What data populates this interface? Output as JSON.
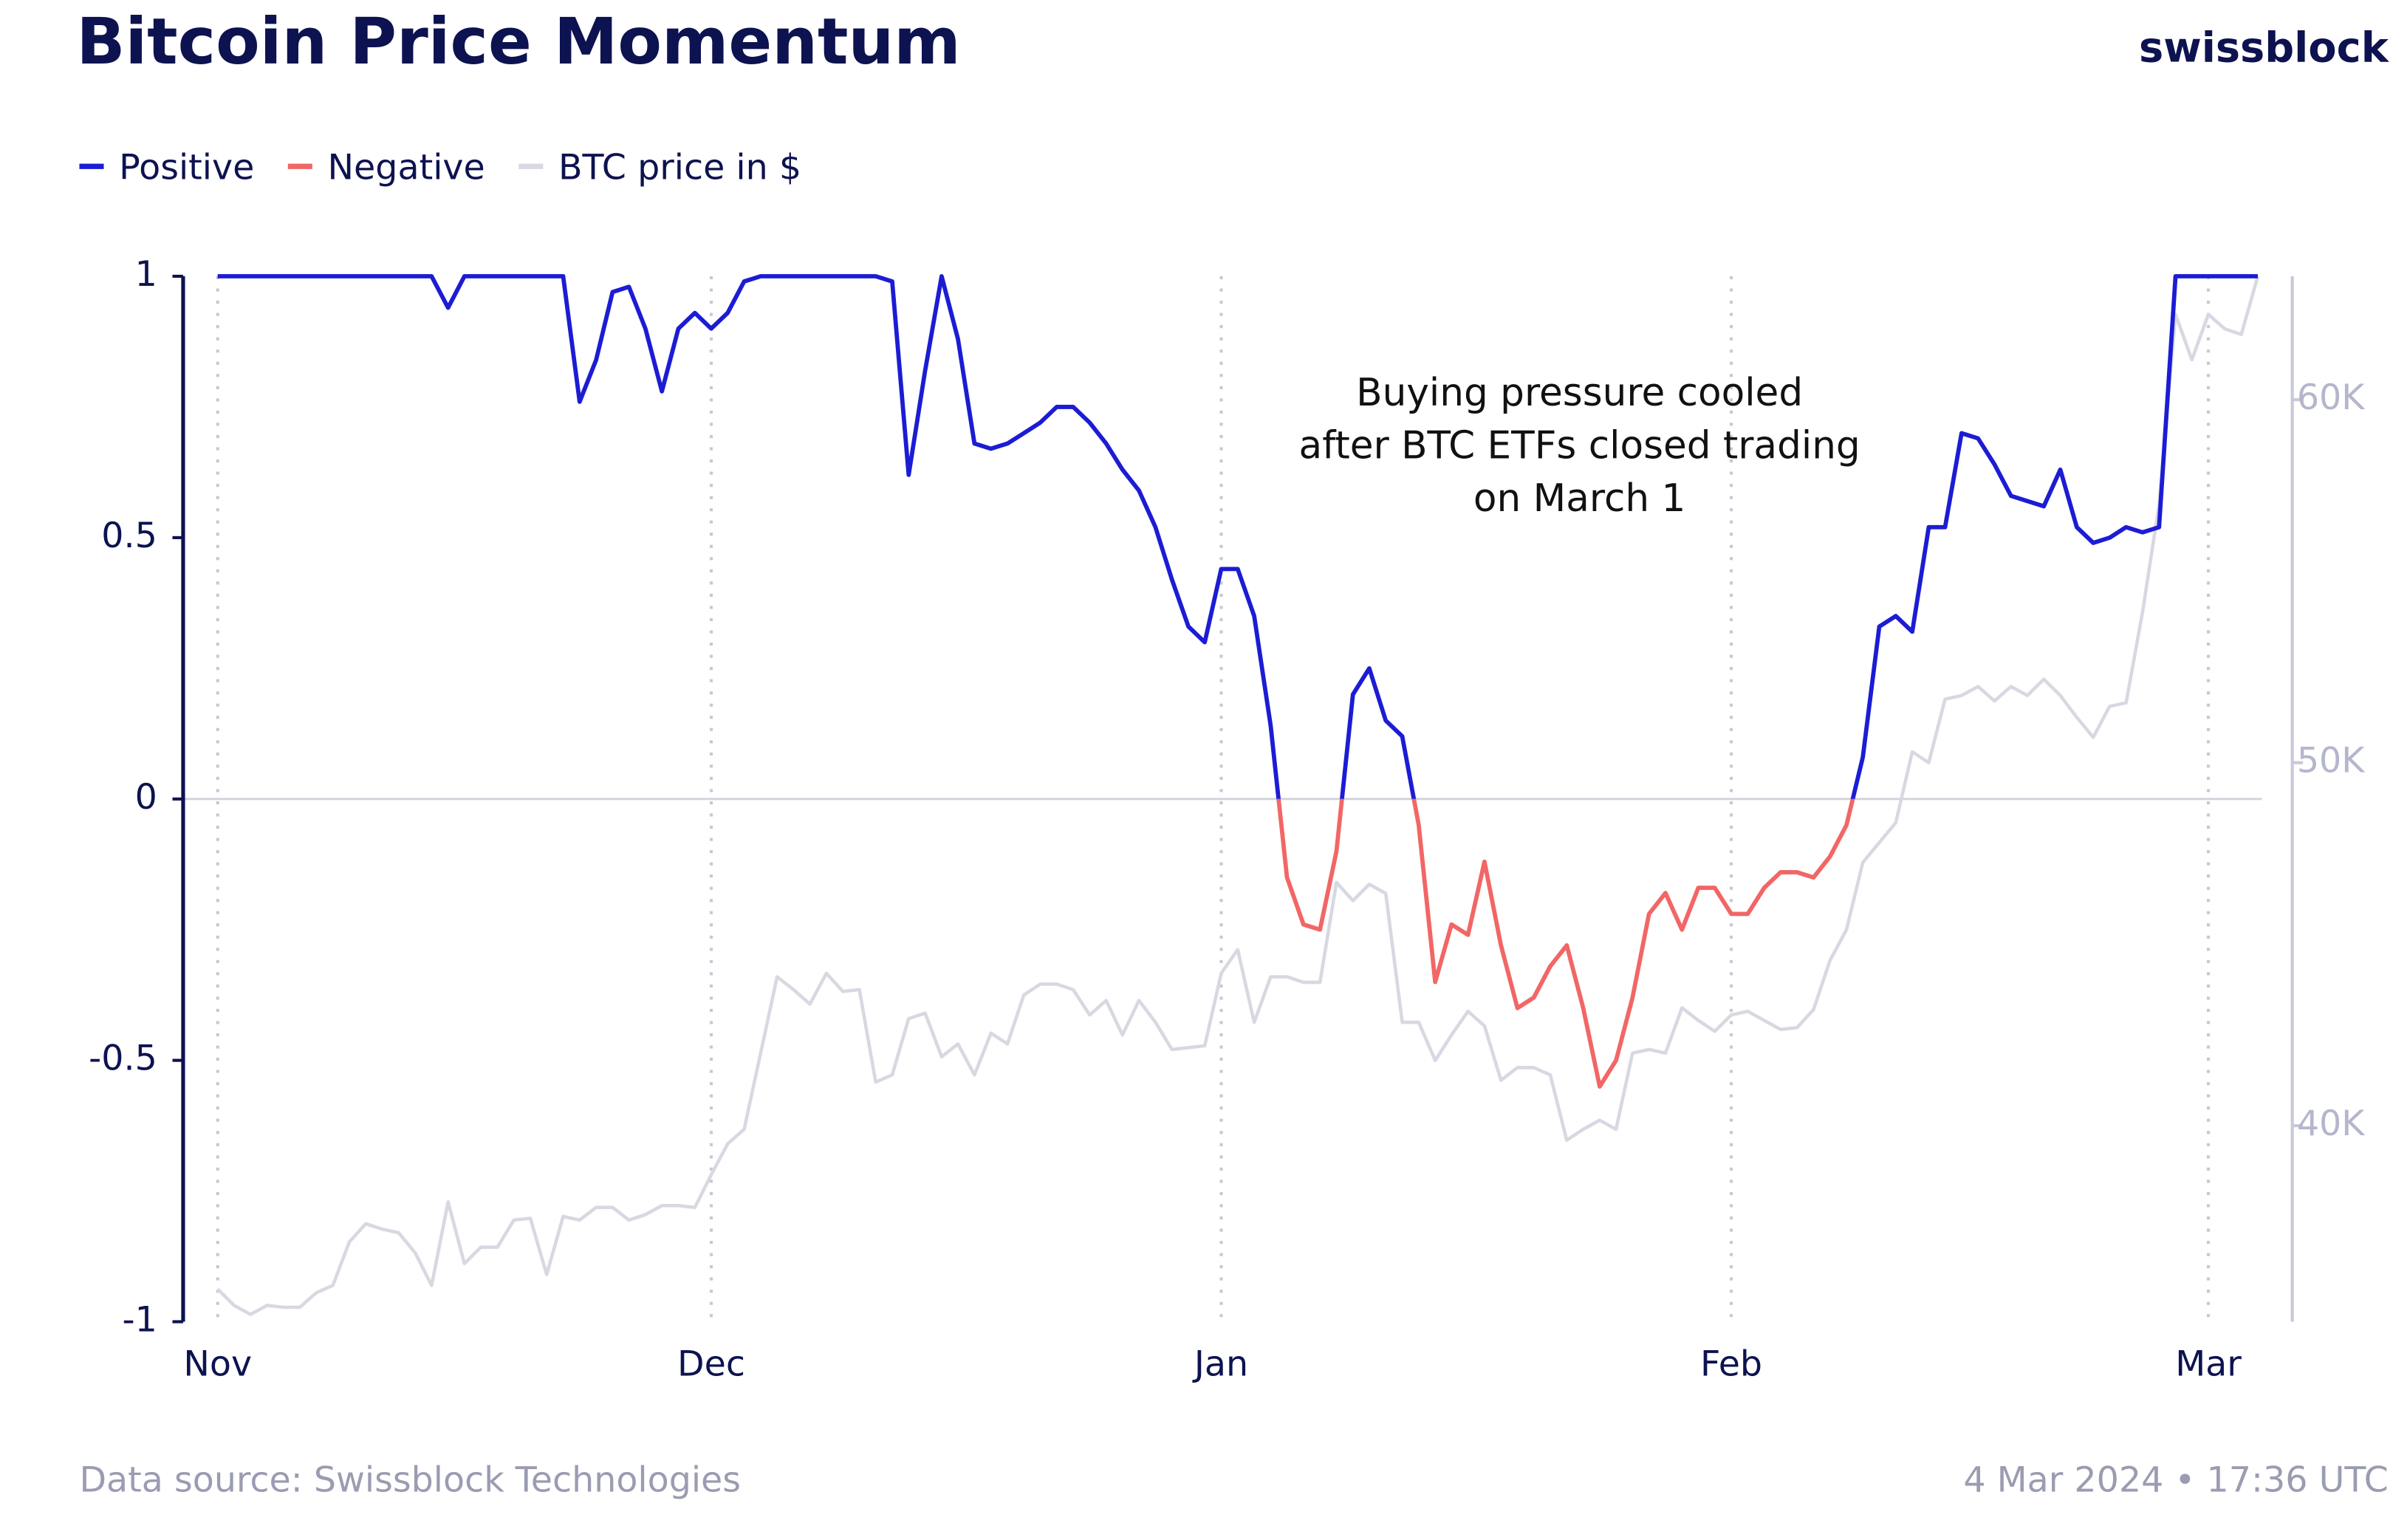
{
  "chart_data": {
    "type": "line",
    "title": "Bitcoin Price Momentum",
    "brand": "swissblock",
    "source": "Data source: Swissblock Technologies",
    "timestamp": "4 Mar 2024 • 17:36 UTC",
    "annotation": [
      "Buying pressure cooled",
      "after BTC ETFs closed trading",
      "on March 1"
    ],
    "x": [
      0,
      1,
      2,
      3,
      4,
      5,
      6,
      7,
      8,
      9,
      10,
      11,
      12,
      13,
      14,
      15,
      16,
      17,
      18,
      19,
      20,
      21,
      22,
      23,
      24,
      25,
      26,
      27,
      28,
      29,
      30,
      31,
      32,
      33,
      34,
      35,
      36,
      37,
      38,
      39,
      40,
      41,
      42,
      43,
      44,
      45,
      46,
      47,
      48,
      49,
      50,
      51,
      52,
      53,
      54,
      55,
      56,
      57,
      58,
      59,
      60,
      61,
      62,
      63,
      64,
      65,
      66,
      67,
      68,
      69,
      70,
      71,
      72,
      73,
      74,
      75,
      76,
      77,
      78,
      79,
      80,
      81,
      82,
      83,
      84,
      85,
      86,
      87,
      88,
      89,
      90,
      91,
      92,
      93,
      94,
      95,
      96,
      97,
      98,
      99,
      100,
      101,
      102,
      103,
      104,
      105,
      106,
      107,
      108,
      109,
      110,
      111,
      112,
      113,
      114,
      115,
      116,
      117,
      118,
      119,
      120,
      121,
      122,
      123,
      124
    ],
    "xlim": [
      -2.1,
      126.1
    ],
    "xticks": [
      {
        "value": 0,
        "label": "Nov"
      },
      {
        "value": 30,
        "label": "Dec"
      },
      {
        "value": 61,
        "label": "Jan"
      },
      {
        "value": 92,
        "label": "Feb"
      },
      {
        "value": 121,
        "label": "Mar"
      }
    ],
    "ylim": [
      -1,
      1
    ],
    "yticks": [
      1,
      0.5,
      0,
      -0.5,
      -1
    ],
    "y2lim": [
      34600,
      63400
    ],
    "y2ticks": [
      {
        "value": 60000,
        "label": "60K"
      },
      {
        "value": 50000,
        "label": "50K"
      },
      {
        "value": 40000,
        "label": "40K"
      }
    ],
    "series": [
      {
        "names": [
          "Positive",
          "Negative"
        ],
        "colors": [
          "#1c1cd4",
          "#f26666"
        ],
        "axis": "y",
        "values": [
          1,
          1,
          1,
          1,
          1,
          1,
          1,
          1,
          1,
          1,
          1,
          1,
          1,
          1,
          0.94,
          1,
          1,
          1,
          1,
          1,
          1,
          1,
          0.76,
          0.84,
          0.97,
          0.98,
          0.9,
          0.78,
          0.9,
          0.93,
          0.9,
          0.93,
          0.99,
          1,
          1,
          1,
          1,
          1,
          1,
          1,
          1,
          0.99,
          0.62,
          0.82,
          1,
          0.88,
          0.68,
          0.67,
          0.68,
          0.7,
          0.72,
          0.75,
          0.75,
          0.72,
          0.68,
          0.63,
          0.59,
          0.52,
          0.42,
          0.33,
          0.3,
          0.44,
          0.44,
          0.35,
          0.14,
          -0.15,
          -0.24,
          -0.25,
          -0.1,
          0.2,
          0.25,
          0.15,
          0.12,
          -0.05,
          -0.35,
          -0.24,
          -0.26,
          -0.12,
          -0.28,
          -0.4,
          -0.38,
          -0.32,
          -0.28,
          -0.4,
          -0.55,
          -0.5,
          -0.38,
          -0.22,
          -0.18,
          -0.25,
          -0.17,
          -0.17,
          -0.22,
          -0.22,
          -0.17,
          -0.14,
          -0.14,
          -0.15,
          -0.11,
          -0.05,
          0.08,
          0.33,
          0.35,
          0.32,
          0.52,
          0.52,
          0.7,
          0.69,
          0.64,
          0.58,
          0.57,
          0.56,
          0.63,
          0.52,
          0.49,
          0.5,
          0.52,
          0.51,
          0.52,
          1,
          1,
          1,
          1,
          1,
          1
        ]
      },
      {
        "name": "BTC price in $",
        "color": "#d8d8e2",
        "axis": "y2",
        "values": [
          35500,
          35050,
          34800,
          35050,
          35000,
          35000,
          35400,
          35600,
          36800,
          37300,
          37150,
          37050,
          36500,
          35600,
          37900,
          36200,
          36650,
          36650,
          37400,
          37450,
          35900,
          37500,
          37400,
          37750,
          37750,
          37400,
          37550,
          37800,
          37800,
          37750,
          38650,
          39500,
          39900,
          42000,
          44100,
          43750,
          43350,
          44200,
          43700,
          43750,
          41200,
          41400,
          42950,
          43100,
          41900,
          42250,
          41400,
          42550,
          42250,
          43600,
          43900,
          43900,
          43750,
          43050,
          43450,
          42500,
          43450,
          42850,
          42100,
          42150,
          42200,
          44200,
          44850,
          42850,
          44100,
          44100,
          43950,
          43950,
          46700,
          46200,
          46650,
          46400,
          42850,
          42850,
          41800,
          42500,
          43150,
          42750,
          41250,
          41600,
          41600,
          41400,
          39600,
          39900,
          40150,
          39900,
          42000,
          42100,
          42000,
          43250,
          42900,
          42600,
          43050,
          43150,
          42900,
          42650,
          42700,
          43200,
          44550,
          45400,
          47250,
          47800,
          48350,
          50300,
          50000,
          51750,
          51850,
          52100,
          51700,
          52100,
          51850,
          52300,
          51850,
          51250,
          50700,
          51550,
          51650,
          54150,
          57100,
          62350,
          61100,
          62350,
          61950,
          61800,
          63400
        ]
      }
    ]
  }
}
